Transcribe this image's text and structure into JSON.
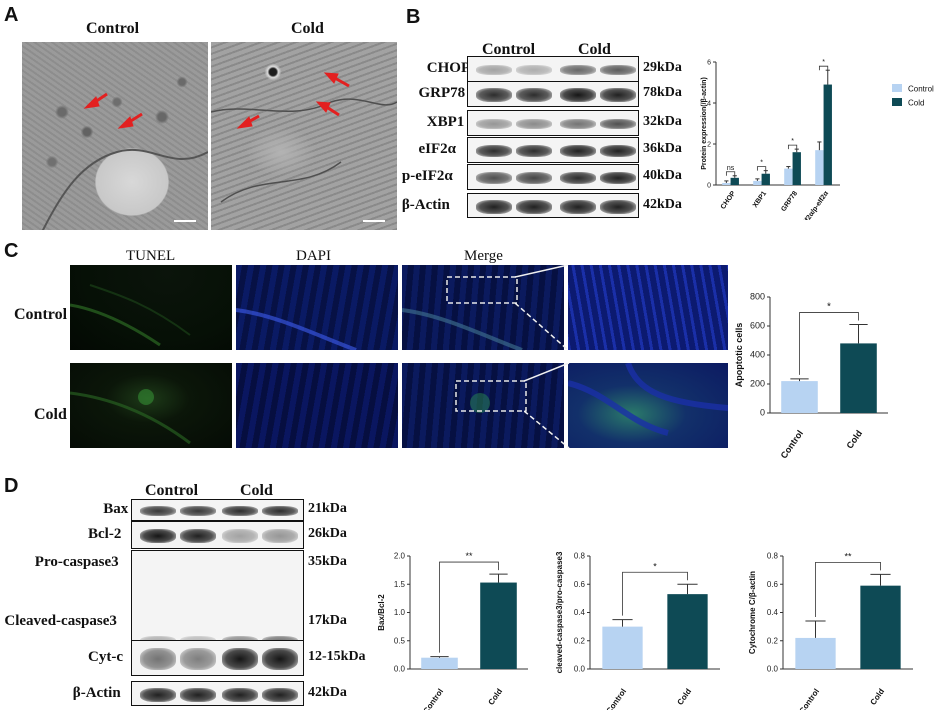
{
  "panels": {
    "A": {
      "letter": "A",
      "groups": [
        "Control",
        "Cold"
      ]
    },
    "B": {
      "letter": "B",
      "groups": [
        "Control",
        "Cold"
      ],
      "proteins": [
        {
          "name": "CHOP",
          "kda": "29kDa"
        },
        {
          "name": "GRP78",
          "kda": "78kDa"
        },
        {
          "name": "XBP1",
          "kda": "32kDa"
        },
        {
          "name": "eIF2α",
          "kda": "36kDa"
        },
        {
          "name": "p-eIF2α",
          "kda": "40kDa"
        },
        {
          "name": "β-Actin",
          "kda": "42kDa"
        }
      ]
    },
    "C": {
      "letter": "C",
      "channels": [
        "TUNEL",
        "DAPI",
        "Merge"
      ],
      "rows": [
        "Control",
        "Cold"
      ]
    },
    "D": {
      "letter": "D",
      "groups": [
        "Control",
        "Cold"
      ],
      "proteins": [
        {
          "name": "Bax",
          "kda": "21kDa"
        },
        {
          "name": "Bcl-2",
          "kda": "26kDa"
        },
        {
          "name": "Pro-caspase3",
          "kda": "35kDa"
        },
        {
          "name": "Cleaved-caspase3",
          "kda": "17kDa"
        },
        {
          "name": "Cyt-c",
          "kda": "12-15kDa"
        },
        {
          "name": "β-Actin",
          "kda": "42kDa"
        }
      ]
    }
  },
  "colors": {
    "control": "#b7d3f2",
    "cold": "#0e4a55",
    "axis": "#333333"
  },
  "chart_data": [
    {
      "id": "B",
      "type": "bar",
      "categories": [
        "CHOP",
        "XBP1",
        "GRP78",
        "p-eIf2α/p-eIf2α"
      ],
      "series": [
        {
          "name": "Control",
          "values": [
            0.1,
            0.2,
            0.8,
            1.7
          ],
          "errors": [
            0.1,
            0.1,
            0.1,
            0.4
          ]
        },
        {
          "name": "Cold",
          "values": [
            0.35,
            0.55,
            1.6,
            4.9
          ],
          "errors": [
            0.1,
            0.15,
            0.15,
            0.7
          ]
        }
      ],
      "significance": [
        "ns",
        "*",
        "*",
        "*"
      ],
      "ylabel": "Protein  expression(/β-actin)",
      "ylim": [
        0,
        6
      ],
      "yticks": [
        0,
        2,
        4,
        6
      ],
      "legend": "top-right"
    },
    {
      "id": "C",
      "type": "bar",
      "categories": [
        "Control",
        "Cold"
      ],
      "values": [
        220,
        480
      ],
      "errors": [
        15,
        130
      ],
      "significance": "*",
      "ylabel": "Apoptotic cells",
      "ylim": [
        0,
        800
      ],
      "yticks": [
        0,
        200,
        400,
        600,
        800
      ]
    },
    {
      "id": "D1",
      "type": "bar",
      "categories": [
        "Control",
        "Cold"
      ],
      "values": [
        0.2,
        1.53
      ],
      "errors": [
        0.02,
        0.15
      ],
      "significance": "**",
      "ylabel": "Bax/Bcl-2",
      "ylim": [
        0,
        2.0
      ],
      "yticks": [
        "0.0",
        "0.5",
        "1.0",
        "1.5",
        "2.0"
      ]
    },
    {
      "id": "D2",
      "type": "bar",
      "categories": [
        "Control",
        "Cold"
      ],
      "values": [
        0.3,
        0.53
      ],
      "errors": [
        0.05,
        0.07
      ],
      "significance": "*",
      "ylabel": "cleaved-caspase3/pro-caspase3",
      "ylim": [
        0,
        0.8
      ],
      "yticks": [
        "0.0",
        "0.2",
        "0.4",
        "0.6",
        "0.8"
      ]
    },
    {
      "id": "D3",
      "type": "bar",
      "categories": [
        "Control",
        "Cold"
      ],
      "values": [
        0.22,
        0.59
      ],
      "errors": [
        0.12,
        0.08
      ],
      "significance": "**",
      "ylabel": "Cytochrome C/β-actin",
      "ylim": [
        0,
        0.8
      ],
      "yticks": [
        "0.0",
        "0.2",
        "0.4",
        "0.6",
        "0.8"
      ]
    }
  ]
}
